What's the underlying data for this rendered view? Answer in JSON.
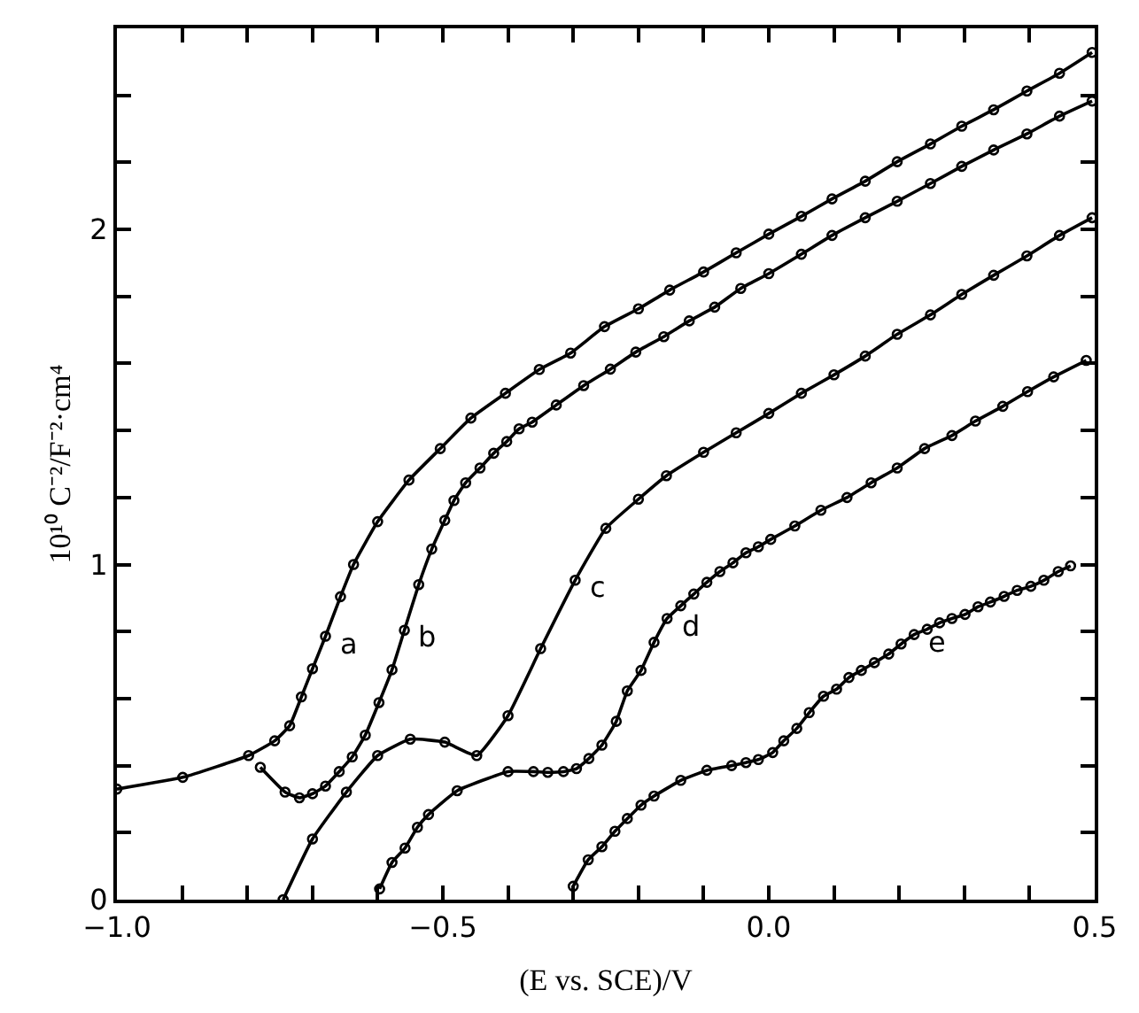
{
  "chart_data": {
    "type": "line",
    "xlabel": "(E vs. SCE)/V",
    "ylabel": "10¹⁰ C⁻²/F⁻²·cm⁴",
    "xlim": [
      -1.0,
      0.5
    ],
    "ylim": [
      0,
      2.6
    ],
    "xticks": [
      {
        "value": -1.0,
        "label": "−1.0"
      },
      {
        "value": -0.9,
        "label": null
      },
      {
        "value": -0.8,
        "label": null
      },
      {
        "value": -0.7,
        "label": null
      },
      {
        "value": -0.6,
        "label": null
      },
      {
        "value": -0.5,
        "label": "−0.5"
      },
      {
        "value": -0.4,
        "label": null
      },
      {
        "value": -0.3,
        "label": null
      },
      {
        "value": -0.2,
        "label": null
      },
      {
        "value": -0.1,
        "label": null
      },
      {
        "value": 0.0,
        "label": "0.0"
      },
      {
        "value": 0.1,
        "label": null
      },
      {
        "value": 0.2,
        "label": null
      },
      {
        "value": 0.3,
        "label": null
      },
      {
        "value": 0.4,
        "label": null
      },
      {
        "value": 0.5,
        "label": "0.5"
      }
    ],
    "yticks": [
      0,
      {
        "value": 0.2,
        "label": null
      },
      {
        "value": 0.4,
        "label": null
      },
      {
        "value": 0.6,
        "label": null
      },
      {
        "value": 0.8,
        "label": null
      },
      1,
      {
        "value": 1.2,
        "label": null
      },
      {
        "value": 1.4,
        "label": null
      },
      {
        "value": 1.6,
        "label": null
      },
      {
        "value": 1.8,
        "label": null
      },
      2,
      {
        "value": 2.2,
        "label": null
      },
      {
        "value": 2.4,
        "label": null
      }
    ],
    "legend": false,
    "marker": "circle",
    "line_style": "solid",
    "series": [
      {
        "name": "a",
        "color": "#000000",
        "x": [
          -1.0,
          -0.899,
          -0.798,
          -0.758,
          -0.735,
          -0.717,
          -0.7,
          -0.68,
          -0.657,
          -0.637,
          -0.6,
          -0.552,
          -0.504,
          -0.457,
          -0.404,
          -0.352,
          -0.304,
          -0.252,
          -0.2,
          -0.152,
          -0.1,
          -0.05,
          0.0,
          0.05,
          0.097,
          0.148,
          0.197,
          0.248,
          0.296,
          0.345,
          0.396,
          0.446,
          0.496
        ],
        "values": [
          0.33,
          0.365,
          0.43,
          0.474,
          0.519,
          0.605,
          0.689,
          0.786,
          0.904,
          1.0,
          1.128,
          1.252,
          1.346,
          1.437,
          1.511,
          1.582,
          1.631,
          1.71,
          1.763,
          1.819,
          1.873,
          1.93,
          1.986,
          2.039,
          2.091,
          2.144,
          2.202,
          2.255,
          2.308,
          2.357,
          2.413,
          2.466,
          2.528
        ]
      },
      {
        "name": "b",
        "color": "#000000",
        "x": [
          -0.78,
          -0.742,
          -0.72,
          -0.7,
          -0.68,
          -0.659,
          -0.639,
          -0.619,
          -0.598,
          -0.578,
          -0.559,
          -0.537,
          -0.517,
          -0.497,
          -0.483,
          -0.465,
          -0.443,
          -0.422,
          -0.402,
          -0.383,
          -0.363,
          -0.326,
          -0.284,
          -0.243,
          -0.204,
          -0.161,
          -0.122,
          -0.083,
          -0.043,
          0.0,
          0.05,
          0.097,
          0.148,
          0.197,
          0.248,
          0.296,
          0.345,
          0.396,
          0.446,
          0.496
        ],
        "values": [
          0.395,
          0.321,
          0.304,
          0.316,
          0.339,
          0.382,
          0.426,
          0.491,
          0.588,
          0.686,
          0.804,
          0.94,
          1.046,
          1.132,
          1.191,
          1.244,
          1.288,
          1.332,
          1.367,
          1.405,
          1.425,
          1.476,
          1.534,
          1.583,
          1.634,
          1.68,
          1.727,
          1.768,
          1.824,
          1.868,
          1.926,
          1.982,
          2.035,
          2.084,
          2.137,
          2.188,
          2.237,
          2.285,
          2.338,
          2.383
        ]
      },
      {
        "name": "c",
        "color": "#000000",
        "x": [
          -0.745,
          -0.7,
          -0.648,
          -0.6,
          -0.55,
          -0.497,
          -0.448,
          -0.4,
          -0.35,
          -0.297,
          -0.25,
          -0.2,
          -0.157,
          -0.1,
          -0.05,
          0.0,
          0.05,
          0.1,
          0.148,
          0.197,
          0.248,
          0.296,
          0.345,
          0.396,
          0.446,
          0.496
        ],
        "values": [
          0.0,
          0.181,
          0.321,
          0.43,
          0.479,
          0.47,
          0.43,
          0.549,
          0.749,
          0.953,
          1.108,
          1.195,
          1.265,
          1.335,
          1.393,
          1.451,
          1.511,
          1.566,
          1.622,
          1.687,
          1.745,
          1.806,
          1.863,
          1.921,
          1.982,
          2.035
        ]
      },
      {
        "name": "d",
        "color": "#000000",
        "x": [
          -0.597,
          -0.578,
          -0.558,
          -0.539,
          -0.522,
          -0.478,
          -0.4,
          -0.361,
          -0.339,
          -0.315,
          -0.295,
          -0.276,
          -0.256,
          -0.234,
          -0.217,
          -0.196,
          -0.176,
          -0.156,
          -0.135,
          -0.115,
          -0.095,
          -0.075,
          -0.055,
          -0.035,
          -0.016,
          0.003,
          0.04,
          0.08,
          0.12,
          0.157,
          0.197,
          0.239,
          0.281,
          0.317,
          0.359,
          0.397,
          0.437,
          0.487
        ],
        "values": [
          0.032,
          0.111,
          0.154,
          0.216,
          0.254,
          0.325,
          0.382,
          0.382,
          0.38,
          0.382,
          0.391,
          0.421,
          0.461,
          0.532,
          0.623,
          0.684,
          0.768,
          0.839,
          0.877,
          0.912,
          0.947,
          0.979,
          1.005,
          1.035,
          1.053,
          1.075,
          1.115,
          1.162,
          1.2,
          1.244,
          1.288,
          1.346,
          1.385,
          1.428,
          1.472,
          1.516,
          1.56,
          1.609
        ]
      },
      {
        "name": "e",
        "color": "#000000",
        "x": [
          -0.3,
          -0.277,
          -0.256,
          -0.236,
          -0.217,
          -0.196,
          -0.176,
          -0.135,
          -0.095,
          -0.057,
          -0.035,
          -0.016,
          0.006,
          0.023,
          0.043,
          0.062,
          0.084,
          0.104,
          0.123,
          0.142,
          0.162,
          0.184,
          0.203,
          0.223,
          0.243,
          0.262,
          0.281,
          0.301,
          0.321,
          0.34,
          0.361,
          0.381,
          0.402,
          0.422,
          0.444,
          0.463
        ],
        "values": [
          0.04,
          0.119,
          0.158,
          0.204,
          0.242,
          0.282,
          0.309,
          0.356,
          0.386,
          0.4,
          0.409,
          0.418,
          0.439,
          0.474,
          0.511,
          0.558,
          0.607,
          0.628,
          0.663,
          0.684,
          0.707,
          0.733,
          0.763,
          0.791,
          0.807,
          0.826,
          0.839,
          0.851,
          0.874,
          0.888,
          0.905,
          0.923,
          0.935,
          0.953,
          0.979,
          0.996
        ]
      }
    ]
  }
}
